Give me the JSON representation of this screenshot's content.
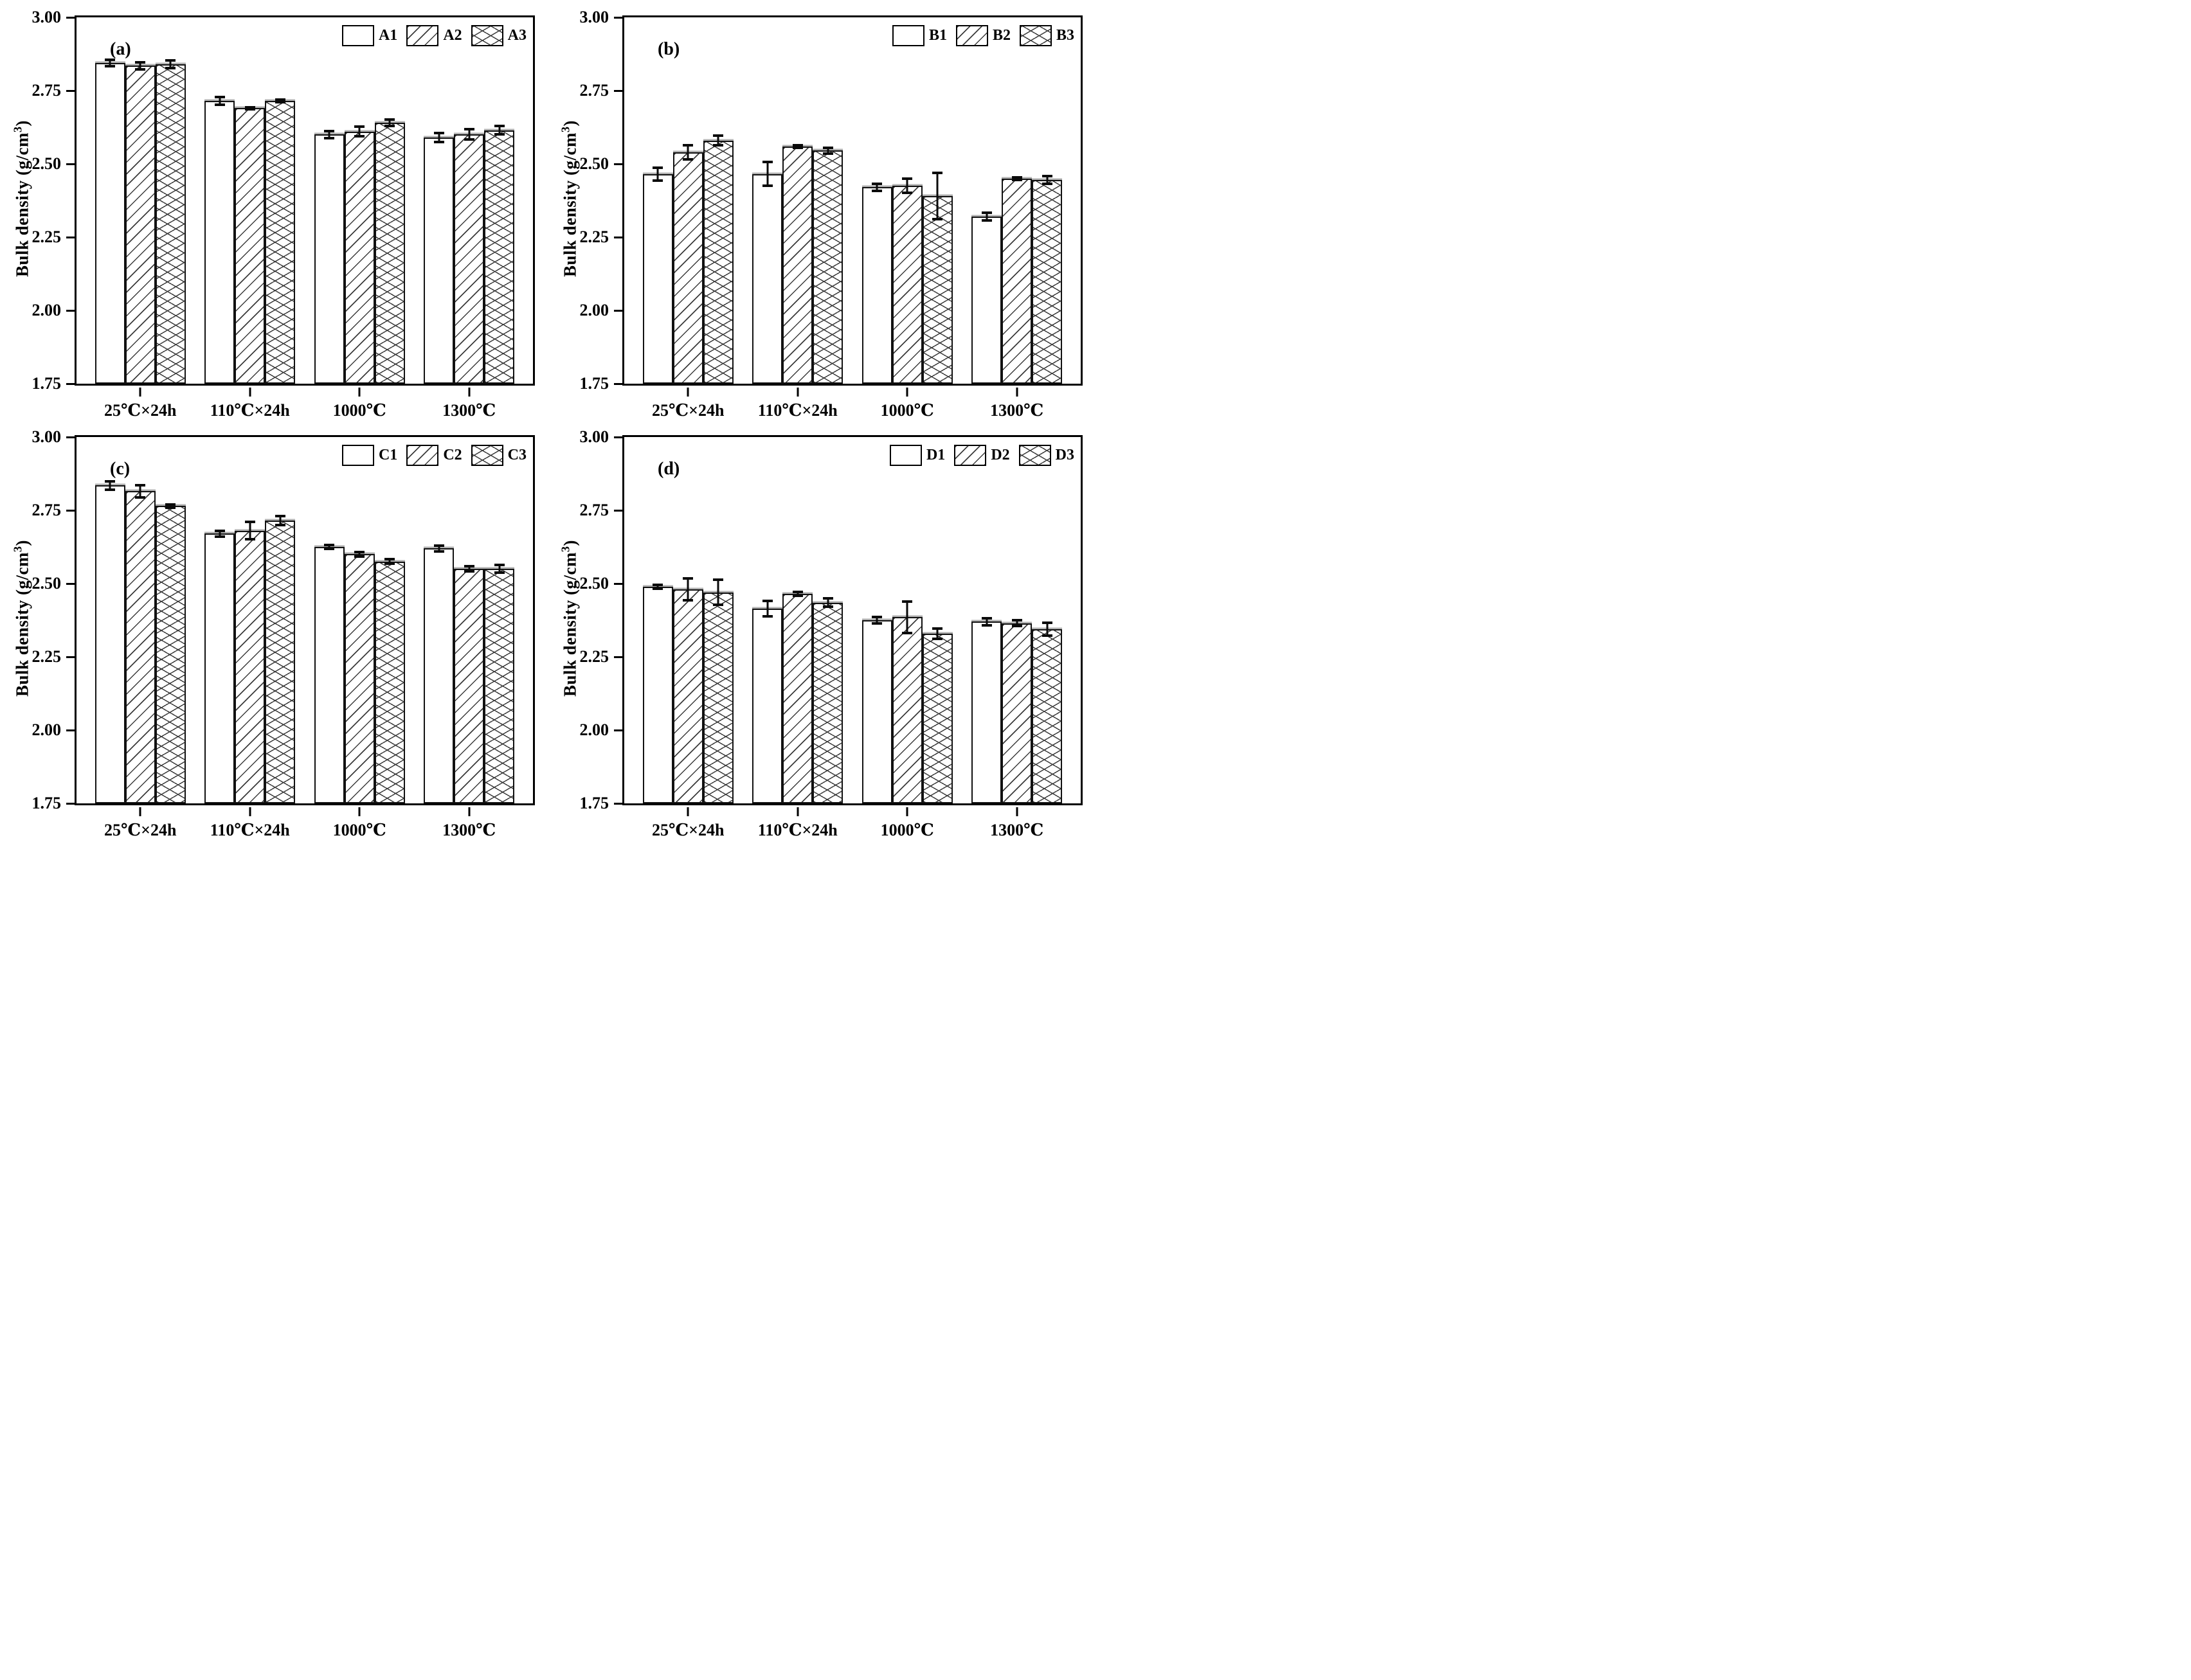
{
  "figure_title": "",
  "axis": {
    "ylabel_main": "Bulk density (g/cm",
    "ylabel_sup": "3",
    "ylabel_end": ")",
    "ymin": 1.75,
    "ymax": 3.0,
    "yticks": [
      {
        "label": "3.00",
        "value": 3.0
      },
      {
        "label": "2.75",
        "value": 2.75
      },
      {
        "label": "2.50",
        "value": 2.5
      },
      {
        "label": "2.25",
        "value": 2.25
      },
      {
        "label": "2.00",
        "value": 2.0
      },
      {
        "label": "1.75",
        "value": 1.75
      }
    ],
    "categories": [
      "25℃×24h",
      "110℃×24h",
      "1000℃",
      "1300℃"
    ]
  },
  "pattern_legend": {
    "plain": "white-bar",
    "diag": "diagonal-hatch-bar",
    "cross": "crosshatch-bar"
  },
  "colors": {
    "axis": "#000000",
    "bar_fill": "#ffffff",
    "hatch": "#3c3c3c",
    "error_bar": "#0a0a0a"
  },
  "chart_data": [
    {
      "type": "bar",
      "panel": "(a)",
      "title": "",
      "xlabel": "",
      "ylabel": "Bulk density (g/cm3)",
      "ylim": [
        1.75,
        3.0
      ],
      "grid": false,
      "legend_position": "top-right-inside",
      "categories": [
        "25℃×24h",
        "110℃×24h",
        "1000℃",
        "1300℃"
      ],
      "series": [
        {
          "name": "A1",
          "pattern": "plain",
          "values": [
            2.845,
            2.715,
            2.6,
            2.59
          ],
          "errors": [
            0.015,
            0.018,
            0.017,
            0.019
          ]
        },
        {
          "name": "A2",
          "pattern": "diag",
          "values": [
            2.835,
            2.69,
            2.61,
            2.6
          ],
          "errors": [
            0.017,
            0.007,
            0.021,
            0.022
          ]
        },
        {
          "name": "A3",
          "pattern": "cross",
          "values": [
            2.84,
            2.715,
            2.64,
            2.615
          ],
          "errors": [
            0.017,
            0.008,
            0.016,
            0.019
          ]
        }
      ]
    },
    {
      "type": "bar",
      "panel": "(b)",
      "title": "",
      "xlabel": "",
      "ylabel": "Bulk density (g/cm3)",
      "ylim": [
        1.75,
        3.0
      ],
      "grid": false,
      "legend_position": "top-right-inside",
      "categories": [
        "25℃×24h",
        "110℃×24h",
        "1000℃",
        "1300℃"
      ],
      "series": [
        {
          "name": "B1",
          "pattern": "plain",
          "values": [
            2.465,
            2.465,
            2.42,
            2.32
          ],
          "errors": [
            0.026,
            0.045,
            0.016,
            0.017
          ]
        },
        {
          "name": "B2",
          "pattern": "diag",
          "values": [
            2.54,
            2.56,
            2.425,
            2.45
          ],
          "errors": [
            0.028,
            0.009,
            0.029,
            0.009
          ]
        },
        {
          "name": "B3",
          "pattern": "cross",
          "values": [
            2.58,
            2.545,
            2.39,
            2.445
          ],
          "errors": [
            0.02,
            0.015,
            0.083,
            0.018
          ]
        }
      ]
    },
    {
      "type": "bar",
      "panel": "(c)",
      "title": "",
      "xlabel": "",
      "ylabel": "Bulk density (g/cm3)",
      "ylim": [
        1.75,
        3.0
      ],
      "grid": false,
      "legend_position": "top-right-inside",
      "categories": [
        "25℃×24h",
        "110℃×24h",
        "1000℃",
        "1300℃"
      ],
      "series": [
        {
          "name": "C1",
          "pattern": "plain",
          "values": [
            2.835,
            2.67,
            2.625,
            2.62
          ],
          "errors": [
            0.019,
            0.015,
            0.012,
            0.014
          ]
        },
        {
          "name": "C2",
          "pattern": "diag",
          "values": [
            2.815,
            2.68,
            2.6,
            2.55
          ],
          "errors": [
            0.025,
            0.034,
            0.012,
            0.013
          ]
        },
        {
          "name": "C3",
          "pattern": "cross",
          "values": [
            2.765,
            2.715,
            2.575,
            2.55
          ],
          "errors": [
            0.01,
            0.019,
            0.012,
            0.017
          ]
        }
      ]
    },
    {
      "type": "bar",
      "panel": "(d)",
      "title": "",
      "xlabel": "",
      "ylabel": "Bulk density (g/cm3)",
      "ylim": [
        1.75,
        3.0
      ],
      "grid": false,
      "legend_position": "top-right-inside",
      "categories": [
        "25℃×24h",
        "110℃×24h",
        "1000℃",
        "1300℃"
      ],
      "series": [
        {
          "name": "D1",
          "pattern": "plain",
          "values": [
            2.49,
            2.415,
            2.375,
            2.37
          ],
          "errors": [
            0.011,
            0.031,
            0.015,
            0.017
          ]
        },
        {
          "name": "D2",
          "pattern": "diag",
          "values": [
            2.48,
            2.465,
            2.385,
            2.365
          ],
          "errors": [
            0.042,
            0.01,
            0.058,
            0.014
          ]
        },
        {
          "name": "D3",
          "pattern": "cross",
          "values": [
            2.47,
            2.435,
            2.33,
            2.345
          ],
          "errors": [
            0.047,
            0.018,
            0.022,
            0.026
          ]
        }
      ]
    }
  ]
}
